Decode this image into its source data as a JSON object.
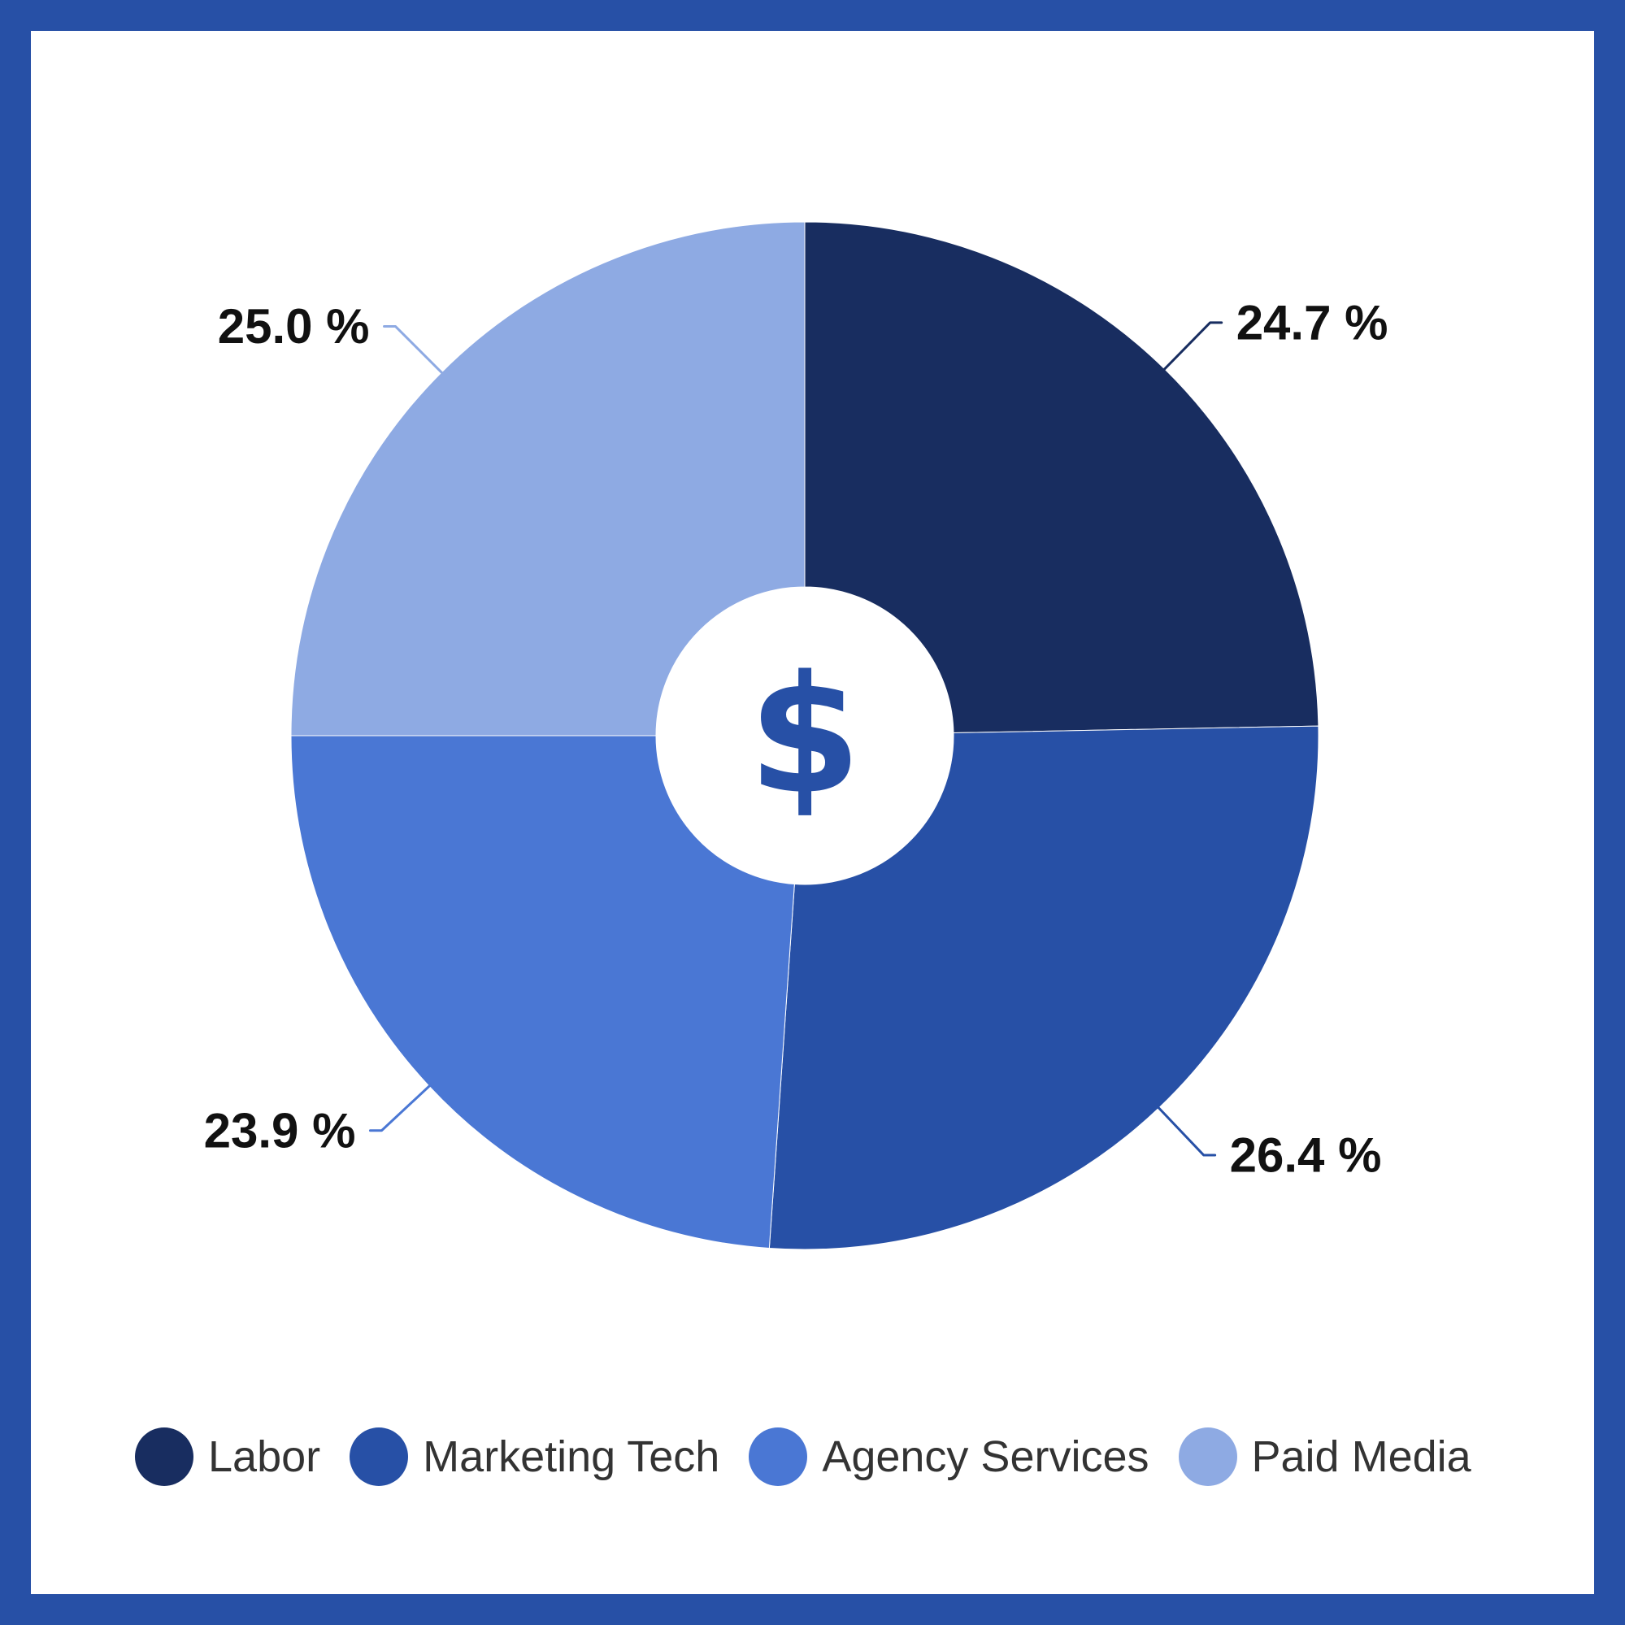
{
  "chart_data": {
    "type": "pie",
    "variant": "donut",
    "center_symbol": "$",
    "categories": [
      "Labor",
      "Marketing Tech",
      "Agency Services",
      "Paid Media"
    ],
    "values": [
      24.7,
      26.4,
      23.9,
      25.0
    ],
    "labels": [
      "24.7 %",
      "26.4 %",
      "23.9 %",
      "25.0 %"
    ],
    "colors": [
      "#182d60",
      "#2750a6",
      "#4a77d4",
      "#8eaae3"
    ],
    "start_angle_deg": 0,
    "direction": "clockwise",
    "legend": {
      "position": "bottom",
      "items": [
        {
          "label": "Labor",
          "color": "#182d60"
        },
        {
          "label": "Marketing Tech",
          "color": "#2750a6"
        },
        {
          "label": "Agency Services",
          "color": "#4a77d4"
        },
        {
          "label": "Paid Media",
          "color": "#8eaae3"
        }
      ]
    }
  },
  "theme": {
    "border_color": "#2750a6",
    "background": "#ffffff",
    "center_symbol_color": "#2750a6"
  }
}
